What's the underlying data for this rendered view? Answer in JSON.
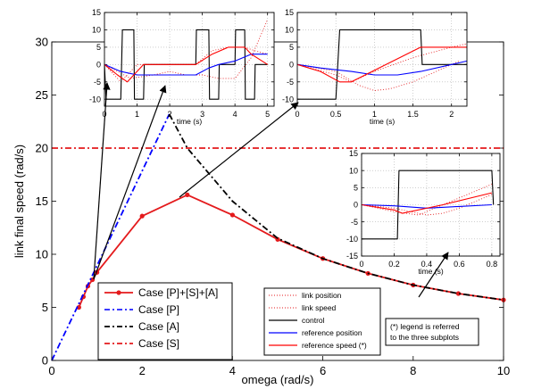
{
  "chart_data": [
    {
      "type": "line",
      "xlabel": "omega (rad/s)",
      "ylabel": "link final speed (rad/s)",
      "xlim": [
        0,
        10
      ],
      "ylim": [
        0,
        30
      ],
      "xticks": [
        "0",
        "2",
        "4",
        "6",
        "8",
        "10"
      ],
      "yticks": [
        "0",
        "5",
        "10",
        "15",
        "20",
        "25",
        "30"
      ],
      "grid": false,
      "legend_position": "bottom-left",
      "series": [
        {
          "name": "Case [P]+[S]+[A]",
          "color": "#e41a1c",
          "style": "solid-markers",
          "points": [
            [
              0.6,
              5.0
            ],
            [
              0.7,
              6.0
            ],
            [
              0.8,
              7.0
            ],
            [
              0.9,
              7.6
            ],
            [
              1.0,
              8.3
            ],
            [
              2.0,
              13.6
            ],
            [
              3.0,
              15.6
            ],
            [
              4.0,
              13.7
            ],
            [
              5.0,
              11.4
            ],
            [
              6.0,
              9.6
            ],
            [
              7.0,
              8.2
            ],
            [
              8.0,
              7.1
            ],
            [
              9.0,
              6.3
            ],
            [
              10.0,
              5.7
            ]
          ]
        },
        {
          "name": "Case [P]",
          "color": "#0000ff",
          "style": "dash-dot",
          "points": [
            [
              0.0,
              0.0
            ],
            [
              2.6,
              23.2
            ]
          ]
        },
        {
          "name": "Case [A]",
          "color": "#000000",
          "style": "dash-dot",
          "points": [
            [
              2.6,
              23.2
            ],
            [
              3.0,
              20.0
            ],
            [
              4.0,
              15.0
            ],
            [
              5.0,
              11.5
            ],
            [
              6.0,
              9.6
            ],
            [
              7.0,
              8.2
            ],
            [
              8.0,
              7.1
            ],
            [
              9.0,
              6.3
            ],
            [
              10.0,
              5.7
            ]
          ]
        },
        {
          "name": "Case [S]",
          "color": "#e41a1c",
          "style": "dash-dot",
          "points": [
            [
              0.0,
              20.0
            ],
            [
              10.0,
              20.0
            ]
          ]
        }
      ]
    },
    {
      "type": "line",
      "xlabel": "time (s)",
      "xlim": [
        0,
        5.2
      ],
      "ylim": [
        -12,
        15
      ],
      "xticks": [
        "0",
        "1",
        "2",
        "3",
        "4",
        "5"
      ],
      "yticks": [
        "-10",
        "-5",
        "0",
        "5",
        "10",
        "15"
      ],
      "grid": true,
      "series": [
        {
          "name": "link position",
          "color": "#e41a1c",
          "style": "dotted",
          "points": [
            [
              0,
              0
            ],
            [
              0.8,
              -4
            ],
            [
              1.5,
              -3
            ],
            [
              2.0,
              -2
            ],
            [
              2.5,
              -3
            ],
            [
              3.0,
              -3
            ],
            [
              3.5,
              -4
            ],
            [
              4.0,
              -4
            ],
            [
              4.5,
              2
            ],
            [
              5.0,
              13
            ]
          ]
        },
        {
          "name": "link speed",
          "color": "#e41a1c",
          "style": "dotted",
          "points": [
            [
              0,
              0
            ],
            [
              0.5,
              -5
            ],
            [
              1.0,
              0
            ],
            [
              2.8,
              0
            ],
            [
              3.3,
              4
            ],
            [
              3.8,
              5
            ],
            [
              4.3,
              5
            ],
            [
              4.6,
              4
            ],
            [
              5.0,
              3
            ]
          ]
        },
        {
          "name": "control",
          "color": "#000000",
          "style": "solid",
          "points": [
            [
              0,
              0
            ],
            [
              0.05,
              -10
            ],
            [
              0.2,
              -10
            ],
            [
              0.4,
              -10
            ],
            [
              0.5,
              -10
            ],
            [
              0.55,
              10
            ],
            [
              0.9,
              10
            ],
            [
              0.92,
              -10
            ],
            [
              1.2,
              -10
            ],
            [
              1.22,
              0
            ],
            [
              1.5,
              0
            ],
            [
              2.8,
              0
            ],
            [
              2.82,
              10
            ],
            [
              3.2,
              10
            ],
            [
              3.22,
              -10
            ],
            [
              3.5,
              -10
            ],
            [
              3.52,
              0
            ],
            [
              4.0,
              0
            ],
            [
              4.02,
              10
            ],
            [
              4.3,
              10
            ],
            [
              4.32,
              -10
            ],
            [
              4.6,
              -10
            ],
            [
              4.62,
              0
            ],
            [
              5.0,
              0
            ]
          ]
        },
        {
          "name": "reference position",
          "color": "#0000ff",
          "style": "solid",
          "points": [
            [
              0,
              0
            ],
            [
              0.5,
              -2
            ],
            [
              1.0,
              -3
            ],
            [
              2.0,
              -3
            ],
            [
              2.8,
              -3
            ],
            [
              3.2,
              -1
            ],
            [
              3.5,
              0
            ],
            [
              4.0,
              1
            ],
            [
              4.5,
              3
            ],
            [
              5.0,
              3
            ]
          ]
        },
        {
          "name": "reference speed (*)",
          "color": "#ff0000",
          "style": "solid",
          "points": [
            [
              0,
              0
            ],
            [
              0.4,
              -3
            ],
            [
              0.7,
              -5
            ],
            [
              1.2,
              0
            ],
            [
              2.8,
              0
            ],
            [
              3.3,
              3
            ],
            [
              3.8,
              5
            ],
            [
              4.3,
              5
            ],
            [
              4.5,
              3
            ],
            [
              5.0,
              0
            ]
          ]
        }
      ]
    },
    {
      "type": "line",
      "xlabel": "time (s)",
      "xlim": [
        0,
        2.2
      ],
      "ylim": [
        -12,
        15
      ],
      "xticks": [
        "0",
        "0.5",
        "1",
        "1.5",
        "2"
      ],
      "yticks": [
        "-10",
        "-5",
        "0",
        "5",
        "10",
        "15"
      ],
      "grid": true,
      "series": [
        {
          "name": "link position",
          "color": "#e41a1c",
          "style": "dotted",
          "points": [
            [
              0,
              0
            ],
            [
              0.5,
              -2
            ],
            [
              0.8,
              -6
            ],
            [
              1.0,
              -7.5
            ],
            [
              1.2,
              -7
            ],
            [
              1.5,
              -5
            ],
            [
              1.8,
              -2
            ],
            [
              2.1,
              1
            ]
          ]
        },
        {
          "name": "link speed",
          "color": "#e41a1c",
          "style": "dotted",
          "points": [
            [
              0,
              0
            ],
            [
              0.5,
              -3
            ],
            [
              0.7,
              -5
            ],
            [
              1.0,
              -2
            ],
            [
              1.5,
              2
            ],
            [
              2.0,
              5
            ],
            [
              2.2,
              6
            ]
          ]
        },
        {
          "name": "control",
          "color": "#000000",
          "style": "solid",
          "points": [
            [
              0,
              -10
            ],
            [
              0.5,
              -10
            ],
            [
              0.55,
              10
            ],
            [
              1.6,
              10
            ],
            [
              1.62,
              0
            ],
            [
              2.2,
              0
            ]
          ]
        },
        {
          "name": "reference position",
          "color": "#0000ff",
          "style": "solid",
          "points": [
            [
              0,
              0
            ],
            [
              0.3,
              -1
            ],
            [
              0.7,
              -2
            ],
            [
              1.0,
              -3
            ],
            [
              1.3,
              -3
            ],
            [
              1.6,
              -2
            ],
            [
              2.0,
              0
            ],
            [
              2.2,
              1
            ]
          ]
        },
        {
          "name": "reference speed (*)",
          "color": "#ff0000",
          "style": "solid",
          "points": [
            [
              0,
              0
            ],
            [
              0.3,
              -2
            ],
            [
              0.55,
              -5
            ],
            [
              0.7,
              -5
            ],
            [
              1.6,
              5
            ],
            [
              2.2,
              5
            ]
          ]
        }
      ]
    },
    {
      "type": "line",
      "xlabel": "time (s)",
      "xlim": [
        0,
        0.85
      ],
      "ylim": [
        -15,
        15
      ],
      "xticks": [
        "0",
        "0.2",
        "0.4",
        "0.6",
        "0.8"
      ],
      "yticks": [
        "-15",
        "-10",
        "-5",
        "0",
        "5",
        "10",
        "15"
      ],
      "grid": true,
      "series": [
        {
          "name": "link position",
          "color": "#e41a1c",
          "style": "dotted",
          "points": [
            [
              0,
              0
            ],
            [
              0.2,
              -1
            ],
            [
              0.3,
              -2
            ],
            [
              0.4,
              -3
            ],
            [
              0.5,
              -2.5
            ],
            [
              0.6,
              -1
            ],
            [
              0.7,
              1
            ],
            [
              0.8,
              3
            ]
          ]
        },
        {
          "name": "link speed",
          "color": "#e41a1c",
          "style": "dotted",
          "points": [
            [
              0,
              0
            ],
            [
              0.2,
              -2
            ],
            [
              0.35,
              -3
            ],
            [
              0.5,
              0
            ],
            [
              0.65,
              3
            ],
            [
              0.8,
              6
            ]
          ]
        },
        {
          "name": "control",
          "color": "#000000",
          "style": "solid",
          "points": [
            [
              0,
              -10
            ],
            [
              0.22,
              -10
            ],
            [
              0.23,
              10
            ],
            [
              0.8,
              10
            ],
            [
              0.81,
              0
            ]
          ]
        },
        {
          "name": "reference position",
          "color": "#0000ff",
          "style": "solid",
          "points": [
            [
              0,
              0
            ],
            [
              0.2,
              -0.3
            ],
            [
              0.4,
              -1
            ],
            [
              0.6,
              -0.5
            ],
            [
              0.8,
              0
            ]
          ]
        },
        {
          "name": "reference speed (*)",
          "color": "#ff0000",
          "style": "solid",
          "points": [
            [
              0,
              0
            ],
            [
              0.2,
              -1.5
            ],
            [
              0.25,
              -2.5
            ],
            [
              0.5,
              0
            ],
            [
              0.8,
              3.5
            ]
          ]
        }
      ]
    }
  ],
  "legend_main": [
    "Case [P]+[S]+[A]",
    "Case [P]",
    "Case [A]",
    "Case [S]"
  ],
  "legend_sub": [
    "link position",
    "link speed",
    "control",
    "reference position",
    "reference speed (*)"
  ],
  "note": [
    "(*) legend is referred",
    "to the three subplots"
  ]
}
